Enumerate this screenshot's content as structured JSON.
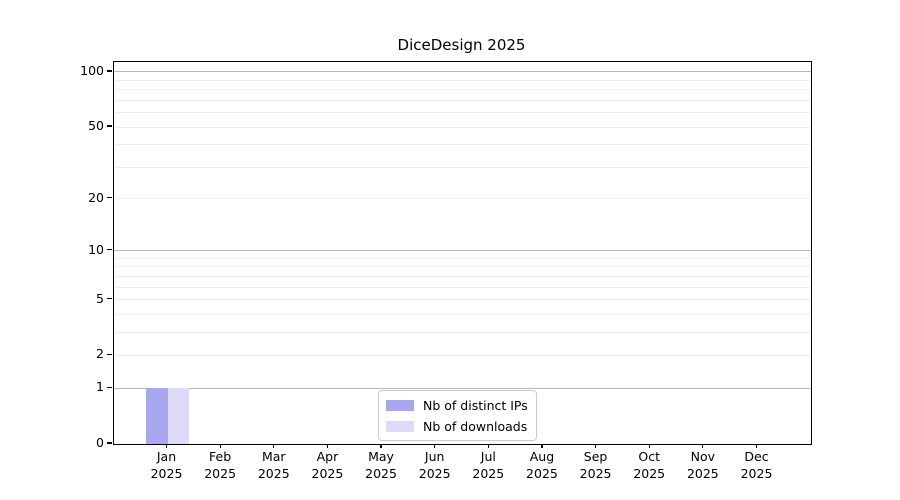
{
  "chart_data": {
    "type": "bar",
    "title": "DiceDesign 2025",
    "categories": [
      "Jan",
      "Feb",
      "Mar",
      "Apr",
      "May",
      "Jun",
      "Jul",
      "Aug",
      "Sep",
      "Oct",
      "Nov",
      "Dec"
    ],
    "x_year_label": "2025",
    "series": [
      {
        "name": "Nb of distinct IPs",
        "color": "#a8a8f0",
        "values": [
          1,
          0,
          0,
          0,
          0,
          0,
          0,
          0,
          0,
          0,
          0,
          0
        ]
      },
      {
        "name": "Nb of downloads",
        "color": "#dcdcf8",
        "values": [
          1,
          0,
          0,
          0,
          0,
          0,
          0,
          0,
          0,
          0,
          0,
          0
        ]
      }
    ],
    "y_axis": {
      "scale": "log1p",
      "tick_values": [
        0,
        1,
        2,
        5,
        10,
        20,
        50,
        100
      ],
      "tick_labels": [
        "0",
        "1",
        "2",
        "5",
        "10",
        "20",
        "50",
        "100"
      ],
      "major_gridlines": [
        1,
        10,
        100
      ],
      "minor_gridlines": [
        2,
        3,
        4,
        5,
        6,
        7,
        8,
        9,
        20,
        30,
        40,
        50,
        60,
        70,
        80,
        90
      ],
      "ylim": [
        0,
        113.3
      ]
    },
    "grid": "horizontal",
    "legend_position": "lower center"
  },
  "colors": {
    "major_grid": "#b8b8b8",
    "minor_grid": "#ededed",
    "axis": "#000000",
    "background": "#ffffff"
  }
}
